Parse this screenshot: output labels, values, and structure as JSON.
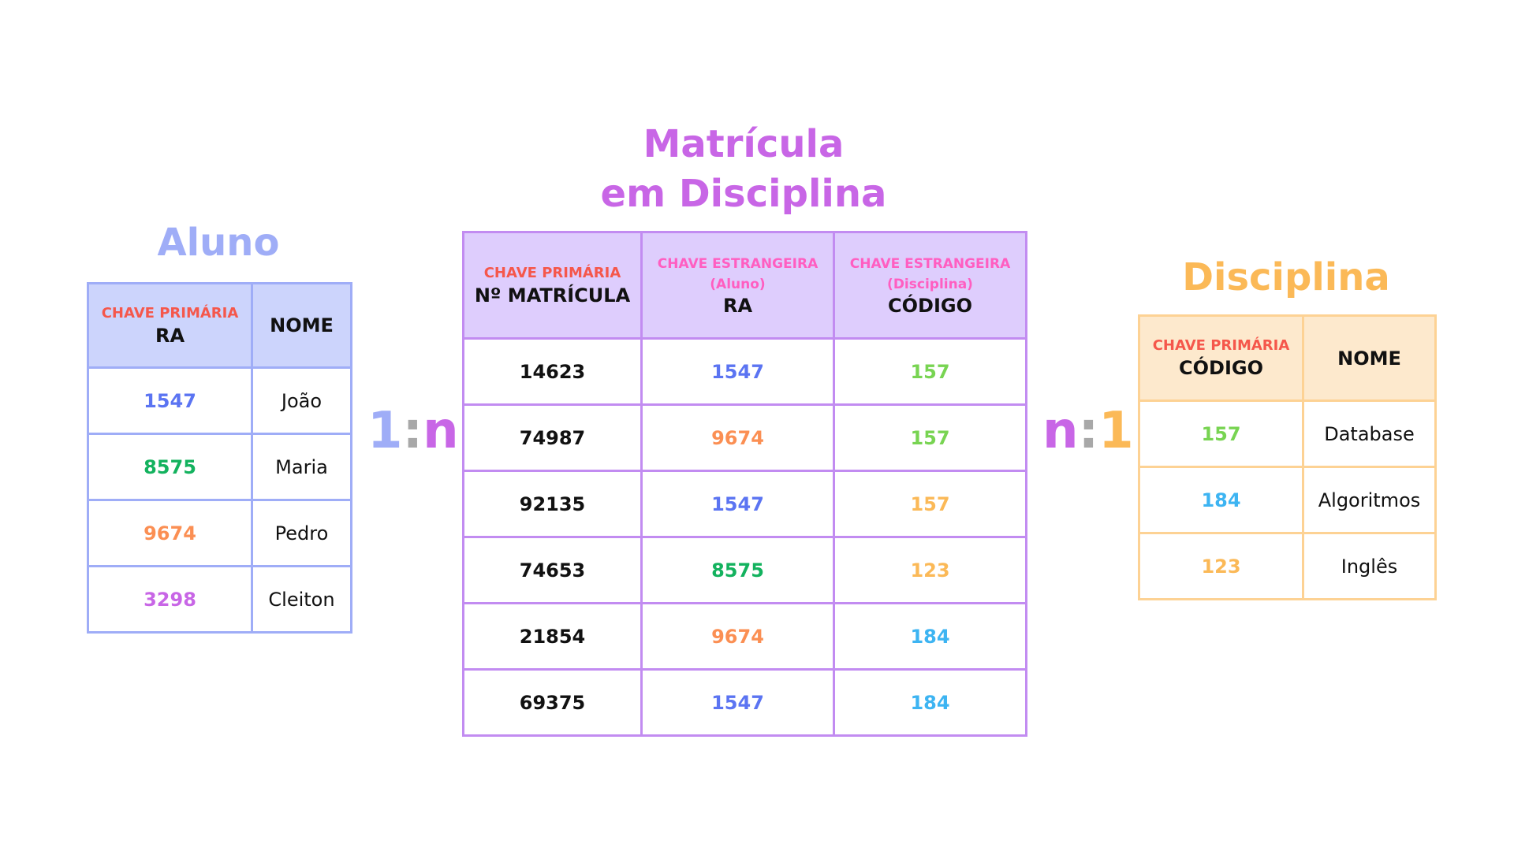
{
  "aluno": {
    "title": "Aluno",
    "header": {
      "pk_label": "CHAVE PRIMÁRIA",
      "col1": "RA",
      "col2": "NOME"
    },
    "rows": [
      {
        "ra": "1547",
        "nome": "João"
      },
      {
        "ra": "8575",
        "nome": "Maria"
      },
      {
        "ra": "9674",
        "nome": "Pedro"
      },
      {
        "ra": "3298",
        "nome": "Cleiton"
      }
    ]
  },
  "matricula": {
    "title_line1": "Matrícula",
    "title_line2": "em Disciplina",
    "header": {
      "pk_label": "CHAVE PRIMÁRIA",
      "col1": "Nº MATRÍCULA",
      "fk1_label": "CHAVE ESTRANGEIRA",
      "fk1_ref": "(Aluno)",
      "col2": "RA",
      "fk2_label": "CHAVE ESTRANGEIRA",
      "fk2_ref": "(Disciplina)",
      "col3": "CÓDIGO"
    },
    "rows": [
      {
        "matricula": "14623",
        "ra": "1547",
        "codigo": "157"
      },
      {
        "matricula": "74987",
        "ra": "9674",
        "codigo": "157"
      },
      {
        "matricula": "92135",
        "ra": "1547",
        "codigo": "157"
      },
      {
        "matricula": "74653",
        "ra": "8575",
        "codigo": "123"
      },
      {
        "matricula": "21854",
        "ra": "9674",
        "codigo": "184"
      },
      {
        "matricula": "69375",
        "ra": "1547",
        "codigo": "184"
      }
    ]
  },
  "disciplina": {
    "title": "Disciplina",
    "header": {
      "pk_label": "CHAVE PRIMÁRIA",
      "col1": "CÓDIGO",
      "col2": "NOME"
    },
    "rows": [
      {
        "codigo": "157",
        "nome": "Database"
      },
      {
        "codigo": "184",
        "nome": "Algoritmos"
      },
      {
        "codigo": "123",
        "nome": "Inglês"
      }
    ]
  },
  "relationships": {
    "left": {
      "a": "1",
      "sep": ":",
      "b": "n"
    },
    "right": {
      "a": "n",
      "sep": ":",
      "b": "1"
    }
  },
  "colors": {
    "ra_1547": "#5b74f2",
    "ra_8575": "#13b25e",
    "ra_9674": "#fb8f53",
    "ra_3298": "#c866e6",
    "cod_157": "#78d452",
    "cod_184": "#3db4f2",
    "cod_123": "#fbb957",
    "aluno_border": "#9fadf7",
    "matricula_border": "#c28cf1",
    "disciplina_border": "#fdd294",
    "primary_key_label": "#f5574b",
    "foreign_key_label": "#ff5ec1"
  }
}
